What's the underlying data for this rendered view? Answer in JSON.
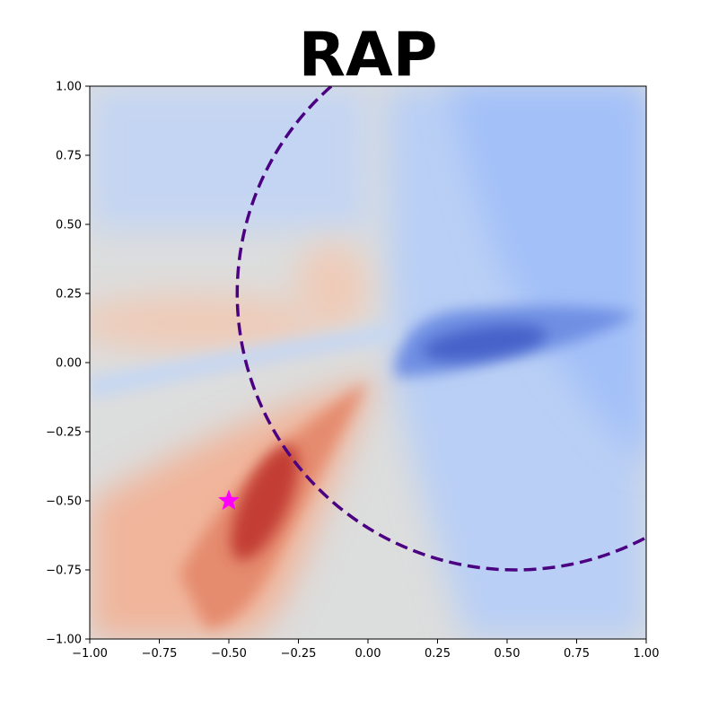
{
  "chart_data": {
    "type": "heatmap",
    "title": "RAP",
    "xlim": [
      -1.0,
      1.0
    ],
    "ylim": [
      -1.0,
      1.0
    ],
    "x_ticks": [
      "−1.00",
      "−0.75",
      "−0.50",
      "−0.25",
      "0.00",
      "0.25",
      "0.50",
      "0.75",
      "1.00"
    ],
    "y_ticks": [
      "−1.00",
      "−0.75",
      "−0.50",
      "−0.25",
      "0.00",
      "0.25",
      "0.50",
      "0.75",
      "1.00"
    ],
    "colormap": "coolwarm",
    "field_features": [
      {
        "kind": "positive_lobe",
        "center": [
          -0.37,
          -0.5
        ],
        "strength": 1.0
      },
      {
        "kind": "negative_lobe",
        "center": [
          0.45,
          0.08
        ],
        "strength": -0.9
      },
      {
        "kind": "negative_region",
        "center": [
          0.7,
          0.5
        ],
        "strength": -0.4
      },
      {
        "kind": "positive_band",
        "center": [
          -0.55,
          0.15
        ],
        "strength": 0.2
      }
    ],
    "boundary_circle": {
      "center": [
        0.53,
        0.25
      ],
      "radius": 1.0,
      "style": "dashed",
      "color": "#4b0082"
    },
    "marker": {
      "x": -0.5,
      "y": -0.5,
      "shape": "star",
      "color": "#ff00ff"
    },
    "grid": false
  }
}
